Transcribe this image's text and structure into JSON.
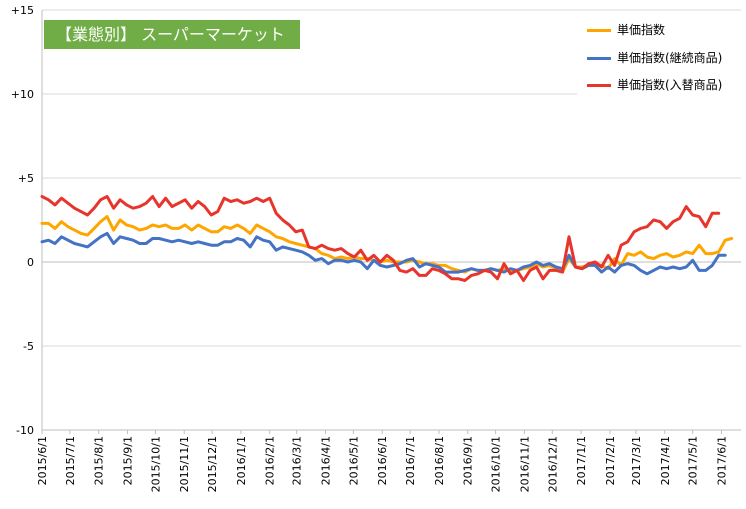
{
  "chart_data": {
    "type": "line",
    "title": "【業態別】 スーパーマーケット",
    "title_color": "#70ad47",
    "ylim": [
      -10,
      15
    ],
    "y_ticks": [
      {
        "value": 15,
        "label": "+15"
      },
      {
        "value": 10,
        "label": "+10"
      },
      {
        "value": 5,
        "label": "+5"
      },
      {
        "value": 0,
        "label": "0"
      },
      {
        "value": -5,
        "label": "-5"
      },
      {
        "value": -10,
        "label": "-10"
      }
    ],
    "grid": true,
    "legend_position": "top-right",
    "x_tick_labels": [
      "2015/6/1",
      "2015/7/1",
      "2015/8/1",
      "2015/9/1",
      "2015/10/1",
      "2015/11/1",
      "2015/12/1",
      "2016/1/1",
      "2016/2/1",
      "2016/3/1",
      "2016/4/1",
      "2016/5/1",
      "2016/6/1",
      "2016/7/1",
      "2016/8/1",
      "2016/9/1",
      "2016/10/1",
      "2016/11/1",
      "2016/12/1",
      "2017/1/1",
      "2017/2/1",
      "2017/3/1",
      "2017/4/1",
      "2017/5/1",
      "2017/6/1"
    ],
    "x_start": "2015/6/1",
    "x_end": "2017/6/22",
    "x_step_days": 7,
    "series": [
      {
        "name": "単価指数",
        "color": "#ffa500",
        "values": [
          2.3,
          2.3,
          2.0,
          2.4,
          2.1,
          1.9,
          1.7,
          1.6,
          2.0,
          2.4,
          2.7,
          1.9,
          2.5,
          2.2,
          2.1,
          1.9,
          2.0,
          2.2,
          2.1,
          2.2,
          2.0,
          2.0,
          2.2,
          1.9,
          2.2,
          2.0,
          1.8,
          1.8,
          2.1,
          2.0,
          2.2,
          2.0,
          1.7,
          2.2,
          2.0,
          1.8,
          1.5,
          1.4,
          1.2,
          1.1,
          1.0,
          0.9,
          0.8,
          0.5,
          0.4,
          0.2,
          0.3,
          0.2,
          0.3,
          0.2,
          0.2,
          0.1,
          0.0,
          0.1,
          0.0,
          0.0,
          0.0,
          0.1,
          0.0,
          -0.1,
          -0.1,
          -0.2,
          -0.2,
          -0.4,
          -0.5,
          -0.6,
          -0.4,
          -0.5,
          -0.5,
          -0.4,
          -0.5,
          -0.4,
          -0.5,
          -0.5,
          -0.4,
          -0.3,
          -0.1,
          -0.3,
          -0.2,
          -0.4,
          -0.6,
          0.2,
          -0.3,
          -0.3,
          -0.2,
          -0.1,
          -0.2,
          -0.4,
          0.2,
          -0.2,
          0.5,
          0.4,
          0.6,
          0.3,
          0.2,
          0.4,
          0.5,
          0.3,
          0.4,
          0.6,
          0.5,
          1.0,
          0.5,
          0.5,
          0.6,
          1.3,
          1.4
        ]
      },
      {
        "name": "単価指数(継続商品)",
        "color": "#4472c4",
        "values": [
          1.2,
          1.3,
          1.1,
          1.5,
          1.3,
          1.1,
          1.0,
          0.9,
          1.2,
          1.5,
          1.7,
          1.1,
          1.5,
          1.4,
          1.3,
          1.1,
          1.1,
          1.4,
          1.4,
          1.3,
          1.2,
          1.3,
          1.2,
          1.1,
          1.2,
          1.1,
          1.0,
          1.0,
          1.2,
          1.2,
          1.4,
          1.3,
          0.9,
          1.5,
          1.3,
          1.2,
          0.7,
          0.9,
          0.8,
          0.7,
          0.6,
          0.4,
          0.1,
          0.2,
          -0.1,
          0.1,
          0.1,
          0.0,
          0.1,
          0.0,
          -0.4,
          0.1,
          -0.2,
          -0.3,
          -0.2,
          -0.1,
          0.1,
          0.2,
          -0.3,
          -0.1,
          -0.2,
          -0.3,
          -0.6,
          -0.6,
          -0.6,
          -0.5,
          -0.4,
          -0.5,
          -0.5,
          -0.4,
          -0.5,
          -0.6,
          -0.4,
          -0.5,
          -0.3,
          -0.2,
          0.0,
          -0.2,
          -0.1,
          -0.3,
          -0.4,
          0.4,
          -0.3,
          -0.4,
          -0.2,
          -0.2,
          -0.6,
          -0.3,
          -0.6,
          -0.2,
          -0.1,
          -0.2,
          -0.5,
          -0.7,
          -0.5,
          -0.3,
          -0.4,
          -0.3,
          -0.4,
          -0.3,
          0.1,
          -0.5,
          -0.5,
          -0.2,
          0.4,
          0.4
        ]
      },
      {
        "name": "単価指数(入替商品)",
        "color": "#e8352c",
        "values": [
          3.9,
          3.7,
          3.4,
          3.8,
          3.5,
          3.2,
          3.0,
          2.8,
          3.2,
          3.7,
          3.9,
          3.2,
          3.7,
          3.4,
          3.2,
          3.3,
          3.5,
          3.9,
          3.3,
          3.8,
          3.3,
          3.5,
          3.7,
          3.2,
          3.6,
          3.3,
          2.8,
          3.0,
          3.8,
          3.6,
          3.7,
          3.5,
          3.6,
          3.8,
          3.6,
          3.8,
          2.9,
          2.5,
          2.2,
          1.8,
          1.9,
          0.9,
          0.8,
          1.0,
          0.8,
          0.7,
          0.8,
          0.5,
          0.3,
          0.7,
          0.1,
          0.4,
          0.0,
          0.4,
          0.1,
          -0.5,
          -0.6,
          -0.4,
          -0.8,
          -0.8,
          -0.4,
          -0.5,
          -0.7,
          -1.0,
          -1.0,
          -1.1,
          -0.8,
          -0.7,
          -0.5,
          -0.6,
          -1.0,
          -0.1,
          -0.7,
          -0.5,
          -1.1,
          -0.5,
          -0.3,
          -1.0,
          -0.5,
          -0.5,
          -0.6,
          1.5,
          -0.3,
          -0.4,
          -0.1,
          0.0,
          -0.3,
          0.4,
          -0.2,
          1.0,
          1.2,
          1.8,
          2.0,
          2.1,
          2.5,
          2.4,
          2.0,
          2.4,
          2.6,
          3.3,
          2.8,
          2.7,
          2.1,
          2.9,
          2.9
        ]
      }
    ]
  }
}
